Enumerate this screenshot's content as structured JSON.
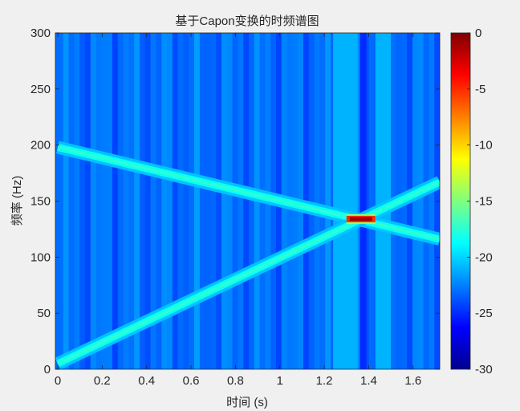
{
  "chart_data": {
    "type": "heatmap",
    "title": "基于Capon变换的时频谱图",
    "xlabel": "时间 (s)",
    "ylabel": "频率 (Hz)",
    "xlim": [
      0,
      1.72
    ],
    "ylim": [
      0,
      300
    ],
    "xticks": [
      "0",
      "0.2",
      "0.4",
      "0.6",
      "0.8",
      "1",
      "1.2",
      "1.4",
      "1.6"
    ],
    "yticks": [
      "0",
      "50",
      "100",
      "150",
      "200",
      "250",
      "300"
    ],
    "colorbar": {
      "ticks": [
        "0",
        "-5",
        "-10",
        "-15",
        "-20",
        "-25",
        "-30"
      ],
      "range": [
        -30,
        0
      ],
      "colormap": "jet"
    },
    "background_level": -23,
    "series": [
      {
        "x": [
          0,
          1.72
        ],
        "y": [
          198,
          116
        ]
      },
      {
        "x": [
          0,
          1.72
        ],
        "y": [
          5,
          167
        ]
      }
    ],
    "intersection": {
      "x_range": [
        1.3,
        1.43
      ],
      "y": 134,
      "level": -1
    },
    "bright_columns": [
      {
        "x": [
          1.24,
          1.35
        ],
        "level": -21
      },
      {
        "x": [
          1.43,
          1.5
        ],
        "level": -21
      }
    ],
    "dark_column": {
      "x": [
        1.36,
        1.39
      ],
      "level": -25
    }
  }
}
